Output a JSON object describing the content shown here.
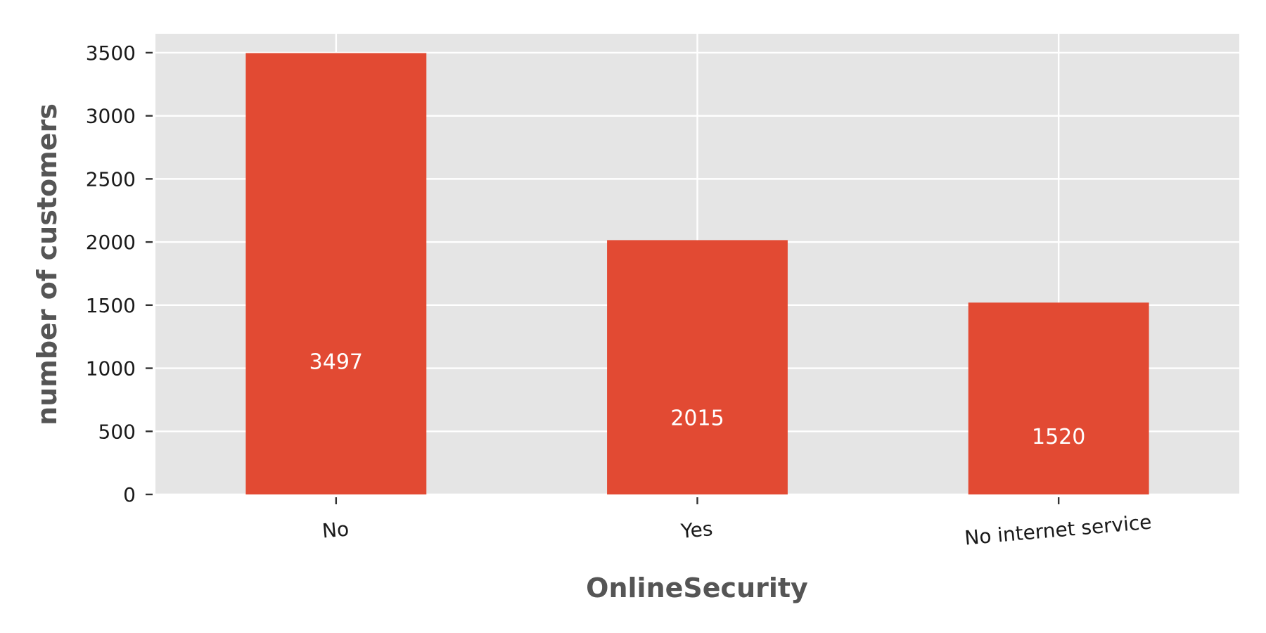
{
  "chart_data": {
    "type": "bar",
    "categories": [
      "No",
      "Yes",
      "No internet service"
    ],
    "values": [
      3497,
      2015,
      1520
    ],
    "data_labels": [
      "3497",
      "2015",
      "1520"
    ],
    "xlabel": "OnlineSecurity",
    "ylabel": "number of customers",
    "ylim": [
      0,
      3650
    ],
    "yticks": [
      0,
      500,
      1000,
      1500,
      2000,
      2500,
      3000,
      3500
    ],
    "ytick_labels": [
      "0",
      "500",
      "1000",
      "1500",
      "2000",
      "2500",
      "3000",
      "3500"
    ],
    "grid": true,
    "legend": "none",
    "colors": {
      "bar": "#E24A33",
      "plot_background": "#E5E5E5",
      "grid": "#FFFFFF",
      "data_label": "#FFFFFF"
    }
  }
}
